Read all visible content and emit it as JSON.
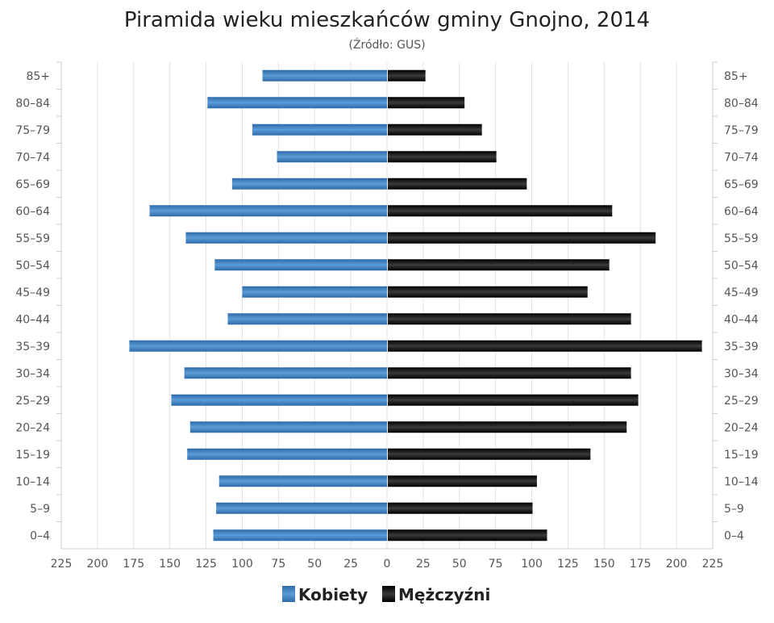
{
  "chart_data": {
    "type": "bar",
    "orientation": "horizontal-pyramid",
    "title": "Piramida wieku mieszkańców gminy Gnojno, 2014",
    "subtitle": "(Źródło: GUS)",
    "categories": [
      "85+",
      "80–84",
      "75–79",
      "70–74",
      "65–69",
      "60–64",
      "55–59",
      "50–54",
      "45–49",
      "40–44",
      "35–39",
      "30–34",
      "25–29",
      "20–24",
      "15–19",
      "10–14",
      "5–9",
      "0–4"
    ],
    "series": [
      {
        "name": "Kobiety",
        "color": "#3d7bbf",
        "side": "left",
        "values": [
          86,
          124,
          93,
          76,
          107,
          164,
          139,
          119,
          100,
          110,
          178,
          140,
          149,
          136,
          138,
          116,
          118,
          120
        ]
      },
      {
        "name": "Mężczyźni",
        "color": "#111111",
        "side": "right",
        "values": [
          26,
          53,
          65,
          75,
          96,
          155,
          185,
          153,
          138,
          168,
          217,
          168,
          173,
          165,
          140,
          103,
          100,
          110
        ]
      }
    ],
    "xlim": [
      -225,
      225
    ],
    "xticks": [
      "225",
      "200",
      "175",
      "150",
      "125",
      "100",
      "75",
      "50",
      "25",
      "0",
      "25",
      "50",
      "75",
      "100",
      "125",
      "150",
      "175",
      "200",
      "225"
    ],
    "grid": true,
    "legend": "bottom-center"
  }
}
